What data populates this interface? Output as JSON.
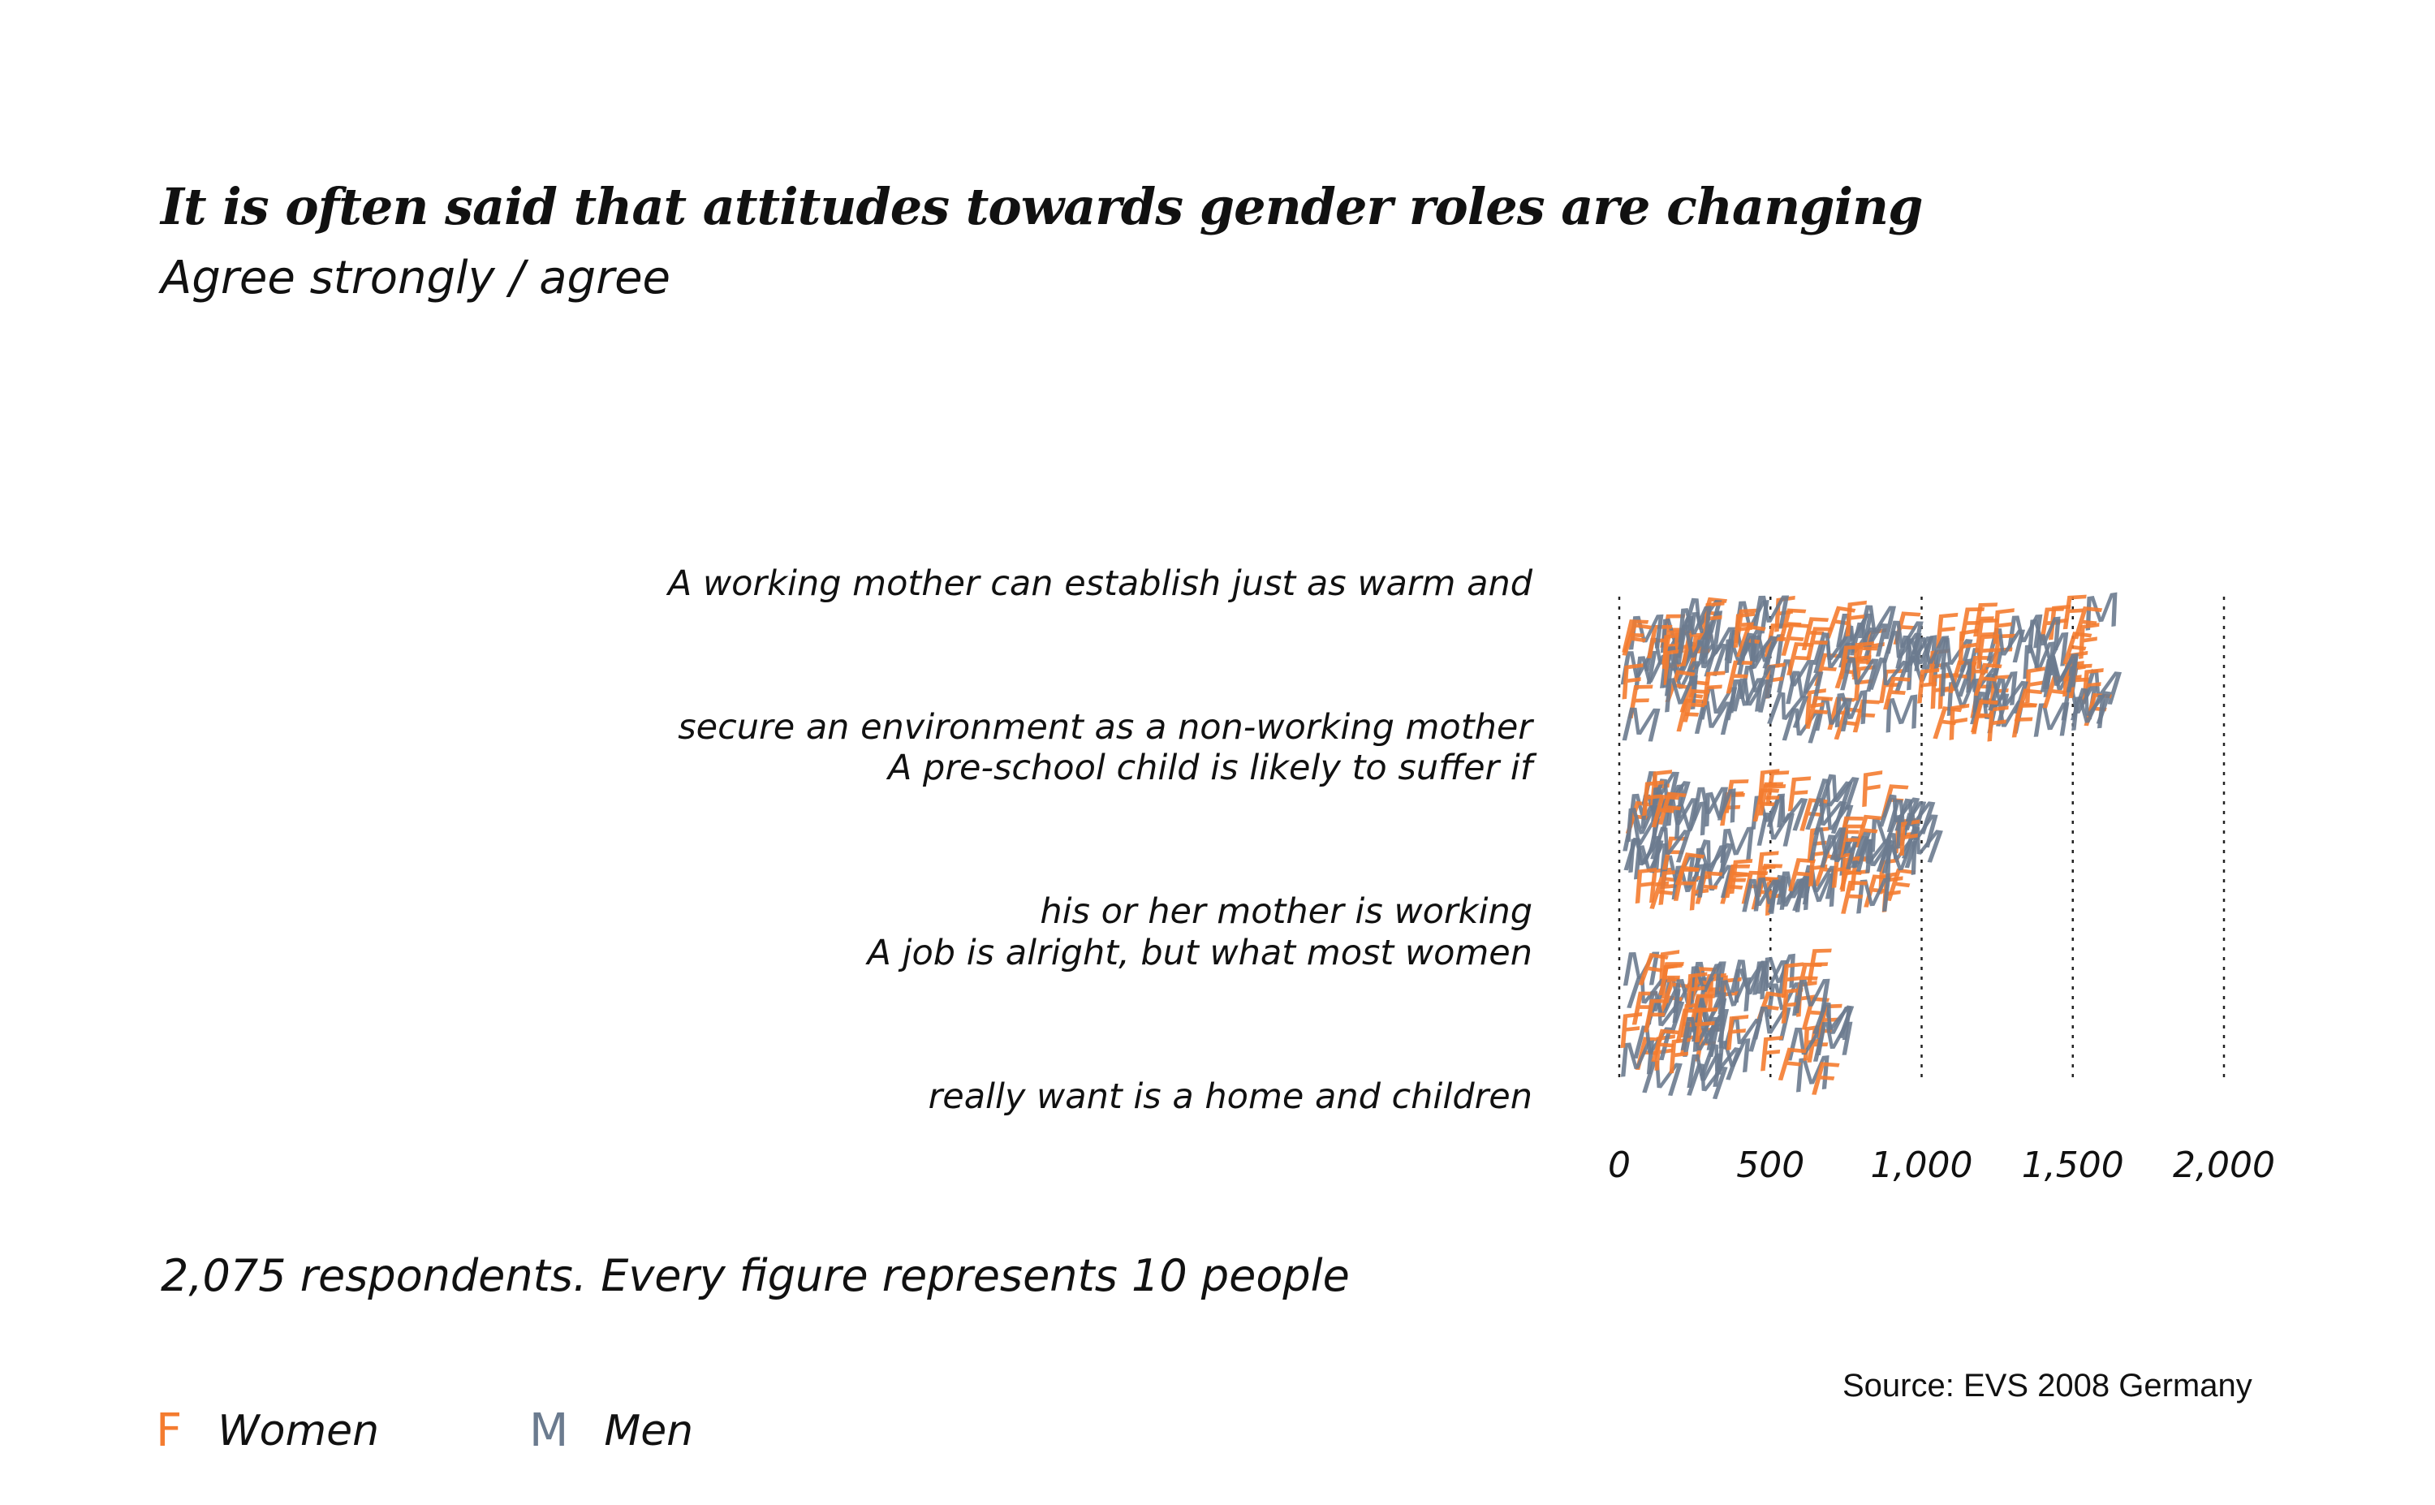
{
  "title": "It is often said that attitudes towards gender roles are changing",
  "subtitle": "Agree strongly / agree",
  "note": "2,075 respondents. Every figure represents 10 people",
  "source": "Source: EVS 2008 Germany",
  "legend": [
    {
      "symbol": "F",
      "label": "Women",
      "color": "#f47c30"
    },
    {
      "symbol": "M",
      "label": "Men",
      "color": "#6b7b8f"
    }
  ],
  "chart_data": {
    "type": "bar",
    "categories": [
      "A working mother can establish just as warm and secure an environment as a non-working mother",
      "A pre-school child is likely to suffer if his or her mother is working",
      "A job is alright, but what most women really want is a home and children"
    ],
    "category_lines": [
      [
        "A working mother can establish just as warm and",
        "secure an environment as a non-working mother"
      ],
      [
        "A pre-school child is likely to suffer if",
        "his or her mother is working"
      ],
      [
        "A job is alright, but what most women",
        "really want is a home and children"
      ]
    ],
    "series": [
      {
        "name": "Women",
        "symbol": "F",
        "color": "#f47c30",
        "values": [
          850,
          500,
          370
        ]
      },
      {
        "name": "Men",
        "symbol": "M",
        "color": "#6b7b8f",
        "values": [
          750,
          500,
          350
        ]
      }
    ],
    "xticks": [
      "0",
      "500",
      "1,000",
      "1,500",
      "2,000"
    ],
    "xtick_values": [
      0,
      500,
      1000,
      1500,
      2000
    ],
    "xlim": [
      0,
      2000
    ],
    "people_per_figure": 10,
    "grid": "vertical dotted"
  }
}
